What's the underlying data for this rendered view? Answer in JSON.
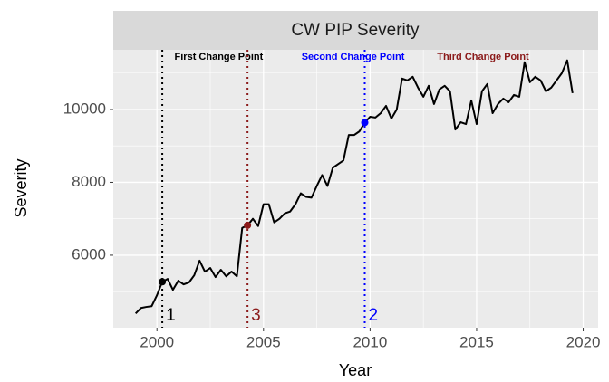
{
  "chart_data": {
    "type": "line",
    "title": "CW PIP Severity",
    "x_label": "Year",
    "y_label": "Severity",
    "xlim": [
      1997.95,
      2020.7
    ],
    "ylim": [
      4010,
      11640
    ],
    "xticks": [
      2000,
      2005,
      2010,
      2015,
      2020
    ],
    "yticks": [
      6000,
      8000,
      10000
    ],
    "x_minor_ticks": [
      1997.5,
      2002.5,
      2007.5,
      2012.5,
      2017.5
    ],
    "y_minor_ticks": [
      5000,
      7000,
      9000,
      11000
    ],
    "grid": true,
    "series": [
      {
        "name": "Severity",
        "color": "#000000",
        "x": [
          1999.0,
          1999.25,
          1999.5,
          1999.75,
          2000.0,
          2000.25,
          2000.5,
          2000.75,
          2001.0,
          2001.25,
          2001.5,
          2001.75,
          2002.0,
          2002.25,
          2002.5,
          2002.75,
          2003.0,
          2003.25,
          2003.5,
          2003.75,
          2004.0,
          2004.25,
          2004.5,
          2004.75,
          2005.0,
          2005.25,
          2005.5,
          2005.75,
          2006.0,
          2006.25,
          2006.5,
          2006.75,
          2007.0,
          2007.25,
          2007.5,
          2007.75,
          2008.0,
          2008.25,
          2008.5,
          2008.75,
          2009.0,
          2009.25,
          2009.5,
          2009.75,
          2010.0,
          2010.25,
          2010.5,
          2010.75,
          2011.0,
          2011.25,
          2011.5,
          2011.75,
          2012.0,
          2012.25,
          2012.5,
          2012.75,
          2013.0,
          2013.25,
          2013.5,
          2013.75,
          2014.0,
          2014.25,
          2014.5,
          2014.75,
          2015.0,
          2015.25,
          2015.5,
          2015.75,
          2016.0,
          2016.25,
          2016.5,
          2016.75,
          2017.0,
          2017.25,
          2017.5,
          2017.75,
          2018.0,
          2018.25,
          2018.5,
          2018.75,
          2019.0,
          2019.25,
          2019.5
        ],
        "values": [
          4400,
          4550,
          4580,
          4600,
          4900,
          5270,
          5350,
          5050,
          5300,
          5200,
          5250,
          5450,
          5850,
          5550,
          5650,
          5400,
          5600,
          5420,
          5550,
          5420,
          6750,
          6820,
          7000,
          6800,
          7400,
          7400,
          6900,
          7000,
          7150,
          7200,
          7400,
          7700,
          7600,
          7580,
          7900,
          8200,
          7900,
          8400,
          8500,
          8600,
          9300,
          9300,
          9400,
          9640,
          9800,
          9780,
          9900,
          10100,
          9750,
          10000,
          10850,
          10800,
          10900,
          10600,
          10350,
          10650,
          10150,
          10550,
          10650,
          10500,
          9450,
          9650,
          9600,
          10250,
          9600,
          10500,
          10700,
          9900,
          10150,
          10300,
          10200,
          10400,
          10350,
          11300,
          10750,
          10900,
          10800,
          10500,
          10600,
          10800,
          11000,
          11350,
          10450
        ]
      }
    ],
    "change_points": [
      {
        "x": 2000.25,
        "y": 5270,
        "label": "1",
        "title": "First Change Point",
        "title_x": 2002.9,
        "color": "#000000"
      },
      {
        "x": 2009.75,
        "y": 9640,
        "label": "2",
        "title": "Second Change Point",
        "title_x": 2009.2,
        "color": "#0000ff"
      },
      {
        "x": 2004.25,
        "y": 6820,
        "label": "3",
        "title": "Third Change Point",
        "title_x": 2015.3,
        "color": "#8b1a1a"
      }
    ]
  }
}
